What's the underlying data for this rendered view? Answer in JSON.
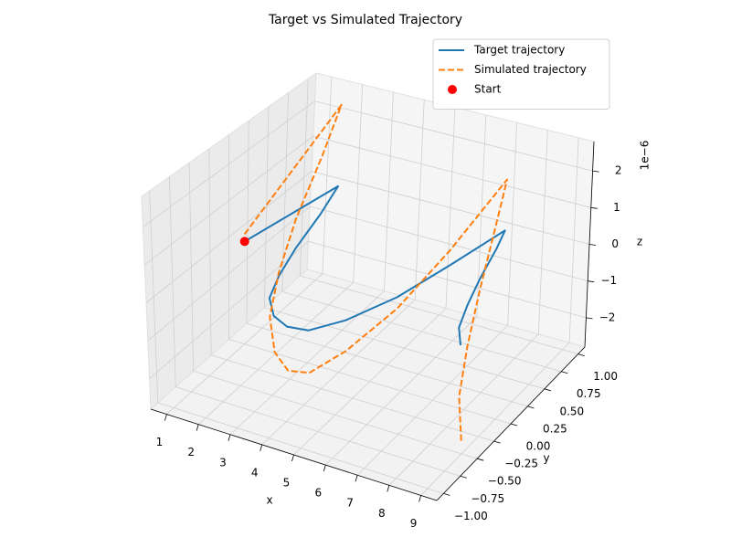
{
  "chart_data": {
    "type": "line3d",
    "title": "Target vs Simulated Trajectory",
    "x_label": "x",
    "y_label": "y",
    "z_label": "z",
    "z_offset_label": "1e−6",
    "xlim": [
      0.5,
      9.5
    ],
    "ylim": [
      -1.1,
      1.1
    ],
    "zlim": [
      -2.8e-06,
      2.8e-06
    ],
    "xticks": [
      1,
      2,
      3,
      4,
      5,
      6,
      7,
      8,
      9
    ],
    "yticks": [
      {
        "value": -1,
        "label": "−1.00"
      },
      {
        "value": -0.75,
        "label": "−0.75"
      },
      {
        "value": -0.5,
        "label": "−0.50"
      },
      {
        "value": -0.25,
        "label": "−0.25"
      },
      {
        "value": 0,
        "label": "0.00"
      },
      {
        "value": 0.25,
        "label": "0.25"
      },
      {
        "value": 0.5,
        "label": "0.50"
      },
      {
        "value": 0.75,
        "label": "0.75"
      },
      {
        "value": 1,
        "label": "1.00"
      }
    ],
    "zticks": [
      {
        "value": -2e-06,
        "label": "−2"
      },
      {
        "value": -1e-06,
        "label": "−1"
      },
      0,
      {
        "value": 1e-06,
        "label": "1"
      },
      {
        "value": 2e-06,
        "label": "2"
      }
    ],
    "grid": true,
    "legend": "upper right",
    "series": [
      {
        "name": "Target trajectory",
        "kind": "line",
        "dash": "solid",
        "color": "#1f77b4",
        "x": [
          1,
          1.6,
          2.0,
          2.4,
          2.8,
          3.2,
          3.8,
          4.4,
          5.0,
          5.6,
          6.2,
          6.6,
          7.0,
          7.3,
          7.7,
          8.1,
          8.5,
          9.0
        ],
        "y": [
          0,
          1,
          0.6,
          0.1,
          -0.3,
          -0.6,
          -0.8,
          -0.88,
          -0.85,
          -0.6,
          -0.15,
          0.4,
          1.0,
          0.75,
          0.35,
          0,
          -0.3,
          -0.5
        ],
        "z": [
          0,
          0,
          0,
          0,
          0,
          0,
          0,
          0,
          0,
          0,
          0,
          0,
          0,
          0,
          0,
          0,
          0,
          0
        ]
      },
      {
        "name": "Simulated trajectory",
        "kind": "line",
        "dash": "dashed",
        "color": "#ff7f0e",
        "x": [
          1,
          1.6,
          2.0,
          2.4,
          2.8,
          3.2,
          3.8,
          4.4,
          5.0,
          5.6,
          6.2,
          6.6,
          7.0,
          7.3,
          7.7,
          8.1,
          8.5,
          9.0
        ],
        "y": [
          0,
          1,
          0.6,
          0.1,
          -0.3,
          -0.6,
          -0.8,
          -0.88,
          -0.85,
          -0.6,
          -0.15,
          0.4,
          1.0,
          0.75,
          0.35,
          0,
          -0.3,
          -0.5
        ],
        "z": [
          2e-07,
          2.3e-06,
          1.6e-06,
          8e-07,
          1e-07,
          -5e-07,
          -9.5e-07,
          -1.15e-06,
          -1.1e-06,
          -8e-07,
          -3e-07,
          4e-07,
          1.4e-06,
          8e-07,
          -3e-07,
          -1.1e-06,
          -1.8e-06,
          -2.5e-06
        ]
      },
      {
        "name": "Start",
        "kind": "scatter",
        "color": "red",
        "x": [
          1
        ],
        "y": [
          0
        ],
        "z": [
          0
        ]
      }
    ]
  }
}
